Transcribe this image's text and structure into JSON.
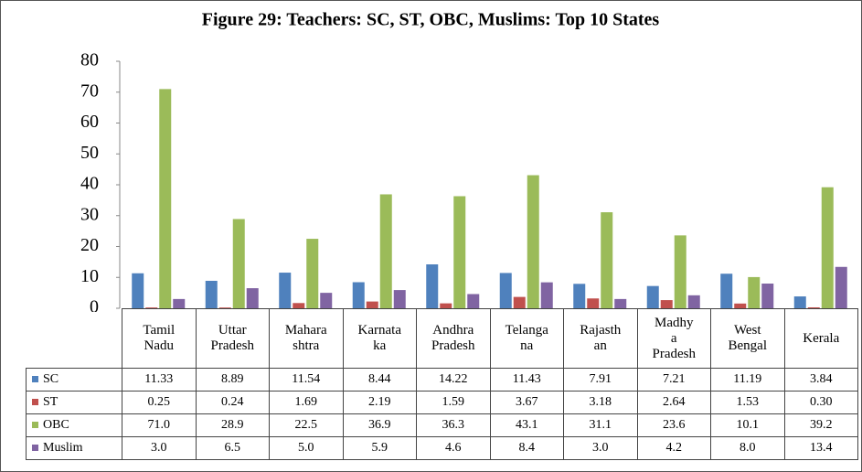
{
  "chart_data": {
    "type": "bar",
    "title": "Figure 29: Teachers: SC, ST, OBC, Muslims: Top 10 States",
    "categories": [
      "Tamil\nNadu",
      "Uttar\nPradesh",
      "Mahara\nshtra",
      "Karnata\nka",
      "Andhra\nPradesh",
      "Telanga\nna",
      "Rajasth\nan",
      "Madhy\na\nPradesh",
      "West\nBengal",
      "Kerala"
    ],
    "series": [
      {
        "name": "SC",
        "color": "#4f81bd",
        "values": [
          11.33,
          8.89,
          11.54,
          8.44,
          14.22,
          11.43,
          7.91,
          7.21,
          11.19,
          3.84
        ],
        "value_labels": [
          "11.33",
          "8.89",
          "11.54",
          "8.44",
          "14.22",
          "11.43",
          "7.91",
          "7.21",
          "11.19",
          "3.84"
        ]
      },
      {
        "name": "ST",
        "color": "#c0504d",
        "values": [
          0.25,
          0.24,
          1.69,
          2.19,
          1.59,
          3.67,
          3.18,
          2.64,
          1.53,
          0.3
        ],
        "value_labels": [
          "0.25",
          "0.24",
          "1.69",
          "2.19",
          "1.59",
          "3.67",
          "3.18",
          "2.64",
          "1.53",
          "0.30"
        ]
      },
      {
        "name": "OBC",
        "color": "#9bbb59",
        "values": [
          71,
          28.9,
          22.5,
          36.9,
          36.3,
          43.1,
          31.1,
          23.6,
          10.1,
          39.2
        ],
        "value_labels": [
          "71.0",
          "28.9",
          "22.5",
          "36.9",
          "36.3",
          "43.1",
          "31.1",
          "23.6",
          "10.1",
          "39.2"
        ]
      },
      {
        "name": "Muslim",
        "color": "#8064a2",
        "values": [
          3,
          6.5,
          5,
          5.9,
          4.6,
          8.4,
          3,
          4.2,
          8,
          13.4
        ],
        "value_labels": [
          "3.0",
          "6.5",
          "5.0",
          "5.9",
          "4.6",
          "8.4",
          "3.0",
          "4.2",
          "8.0",
          "13.4"
        ]
      }
    ],
    "ylim": [
      0,
      80
    ],
    "yticks": [
      0,
      10,
      20,
      30,
      40,
      50,
      60,
      70,
      80
    ]
  }
}
